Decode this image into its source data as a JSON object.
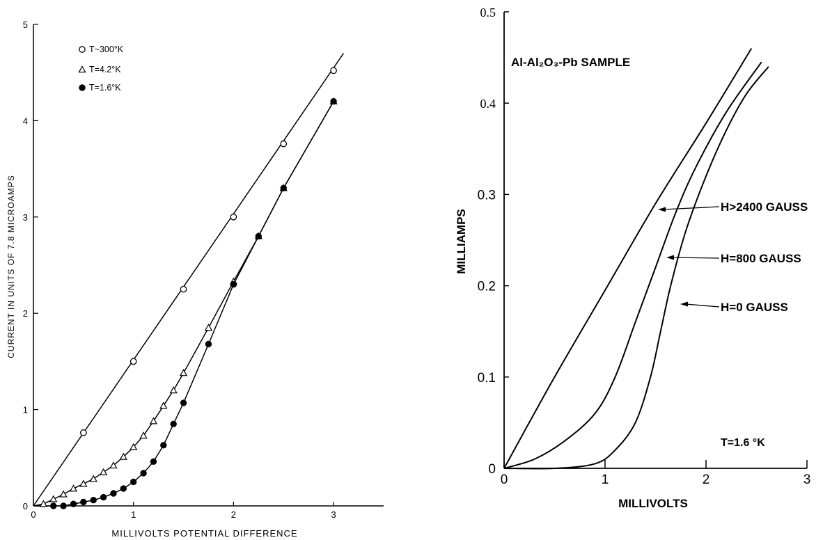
{
  "chart_data": [
    {
      "type": "scatter",
      "xlabel": "MILLIVOLTS POTENTIAL DIFFERENCE",
      "ylabel": "CURRENT IN UNITS OF 7.8 MICROAMPS",
      "xlim": [
        0,
        3.5
      ],
      "ylim": [
        0,
        5
      ],
      "x_ticks": [
        "0",
        "1",
        "2",
        "3"
      ],
      "y_ticks": [
        "0",
        "1",
        "2",
        "3",
        "4",
        "5"
      ],
      "legend_position": "top-left",
      "series": [
        {
          "name": "T~300°K",
          "marker": "open-circle",
          "line": [
            [
              0,
              0
            ],
            [
              3.1,
              4.7
            ]
          ],
          "points": [
            [
              0.5,
              0.76
            ],
            [
              1.0,
              1.5
            ],
            [
              1.5,
              2.25
            ],
            [
              2.0,
              3.0
            ],
            [
              2.5,
              3.76
            ],
            [
              3.0,
              4.52
            ]
          ]
        },
        {
          "name": "T=4.2°K",
          "marker": "open-triangle",
          "points": [
            [
              0.1,
              0.02
            ],
            [
              0.2,
              0.07
            ],
            [
              0.3,
              0.12
            ],
            [
              0.4,
              0.18
            ],
            [
              0.5,
              0.23
            ],
            [
              0.6,
              0.28
            ],
            [
              0.7,
              0.35
            ],
            [
              0.8,
              0.42
            ],
            [
              0.9,
              0.51
            ],
            [
              1.0,
              0.61
            ],
            [
              1.1,
              0.73
            ],
            [
              1.2,
              0.88
            ],
            [
              1.3,
              1.04
            ],
            [
              1.4,
              1.2
            ],
            [
              1.5,
              1.38
            ],
            [
              1.75,
              1.85
            ],
            [
              2.0,
              2.33
            ],
            [
              2.25,
              2.8
            ],
            [
              2.5,
              3.3
            ],
            [
              3.0,
              4.2
            ]
          ]
        },
        {
          "name": "T=1.6°K",
          "marker": "filled-circle",
          "points": [
            [
              0.2,
              0.0
            ],
            [
              0.3,
              0.0
            ],
            [
              0.4,
              0.02
            ],
            [
              0.5,
              0.04
            ],
            [
              0.6,
              0.06
            ],
            [
              0.7,
              0.09
            ],
            [
              0.8,
              0.13
            ],
            [
              0.9,
              0.18
            ],
            [
              1.0,
              0.25
            ],
            [
              1.1,
              0.34
            ],
            [
              1.2,
              0.46
            ],
            [
              1.3,
              0.63
            ],
            [
              1.4,
              0.85
            ],
            [
              1.5,
              1.07
            ],
            [
              1.75,
              1.68
            ],
            [
              2.0,
              2.3
            ],
            [
              2.25,
              2.8
            ],
            [
              2.5,
              3.3
            ],
            [
              3.0,
              4.2
            ]
          ]
        }
      ]
    },
    {
      "type": "line",
      "title": "Al-Al₂O₃-Pb SAMPLE",
      "xlabel": "MILLIVOLTS",
      "ylabel": "MILLIAMPS",
      "xlim": [
        0,
        3
      ],
      "ylim": [
        0,
        0.5
      ],
      "x_ticks": [
        "0",
        "1",
        "2",
        "3"
      ],
      "y_ticks": [
        "0",
        "0.1",
        "0.2",
        "0.3",
        "0.4",
        "0.5"
      ],
      "annotation": "T=1.6 °K",
      "series": [
        {
          "name": "H>2400 GAUSS",
          "points": [
            [
              0,
              0
            ],
            [
              0.5,
              0.1
            ],
            [
              1.0,
              0.195
            ],
            [
              1.5,
              0.29
            ],
            [
              2.0,
              0.378
            ],
            [
              2.45,
              0.46
            ]
          ]
        },
        {
          "name": "H=800 GAUSS",
          "points": [
            [
              0,
              0
            ],
            [
              0.3,
              0.01
            ],
            [
              0.6,
              0.03
            ],
            [
              0.9,
              0.06
            ],
            [
              1.1,
              0.1
            ],
            [
              1.3,
              0.16
            ],
            [
              1.5,
              0.22
            ],
            [
              1.7,
              0.28
            ],
            [
              1.9,
              0.33
            ],
            [
              2.2,
              0.39
            ],
            [
              2.55,
              0.445
            ]
          ]
        },
        {
          "name": "H=0 GAUSS",
          "points": [
            [
              0,
              0
            ],
            [
              0.5,
              0.0
            ],
            [
              0.9,
              0.005
            ],
            [
              1.1,
              0.02
            ],
            [
              1.3,
              0.05
            ],
            [
              1.45,
              0.1
            ],
            [
              1.55,
              0.15
            ],
            [
              1.65,
              0.2
            ],
            [
              1.8,
              0.26
            ],
            [
              2.0,
              0.32
            ],
            [
              2.2,
              0.37
            ],
            [
              2.4,
              0.41
            ],
            [
              2.62,
              0.44
            ]
          ]
        }
      ]
    }
  ]
}
